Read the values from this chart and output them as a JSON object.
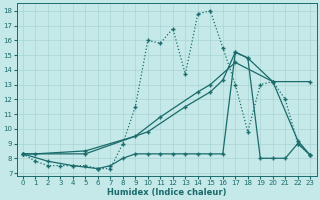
{
  "xlabel": "Humidex (Indice chaleur)",
  "bg_color": "#c5e8e8",
  "grid_color": "#acd4d4",
  "line_color": "#1a6b6b",
  "xlim": [
    -0.5,
    23.5
  ],
  "ylim": [
    6.8,
    18.5
  ],
  "xticks": [
    0,
    1,
    2,
    3,
    4,
    5,
    6,
    7,
    8,
    9,
    10,
    11,
    12,
    13,
    14,
    15,
    16,
    17,
    18,
    19,
    20,
    21,
    22,
    23
  ],
  "yticks": [
    7,
    8,
    9,
    10,
    11,
    12,
    13,
    14,
    15,
    16,
    17,
    18
  ],
  "line1_x": [
    0,
    1,
    2,
    3,
    4,
    5,
    6,
    7,
    8,
    9,
    10,
    11,
    12,
    13,
    14,
    15,
    16,
    17,
    18,
    19,
    20,
    21,
    22,
    23
  ],
  "line1_y": [
    8.3,
    7.8,
    7.5,
    7.5,
    7.5,
    7.5,
    7.3,
    7.3,
    9.0,
    11.5,
    16.0,
    15.8,
    16.8,
    13.7,
    17.8,
    18.0,
    15.5,
    13.0,
    9.8,
    13.0,
    13.2,
    12.0,
    9.0,
    8.2
  ],
  "line2_x": [
    0,
    1,
    5,
    9,
    11,
    14,
    15,
    17,
    20,
    23
  ],
  "line2_y": [
    8.3,
    8.3,
    8.5,
    9.5,
    10.8,
    12.5,
    13.0,
    14.5,
    13.2,
    13.2
  ],
  "line3_x": [
    0,
    2,
    4,
    6,
    7,
    8,
    9,
    10,
    11,
    12,
    13,
    14,
    15,
    16,
    17,
    18,
    19,
    20,
    21,
    22,
    23
  ],
  "line3_y": [
    8.3,
    7.8,
    7.5,
    7.3,
    7.5,
    8.0,
    8.3,
    8.3,
    8.3,
    8.3,
    8.3,
    8.3,
    8.3,
    8.3,
    15.2,
    14.8,
    8.0,
    8.0,
    8.0,
    9.0,
    8.2
  ],
  "line4_x": [
    0,
    5,
    10,
    13,
    15,
    16,
    17,
    18,
    20,
    22,
    23
  ],
  "line4_y": [
    8.3,
    8.3,
    9.8,
    11.5,
    12.5,
    13.3,
    15.2,
    14.8,
    13.2,
    9.2,
    8.2
  ]
}
